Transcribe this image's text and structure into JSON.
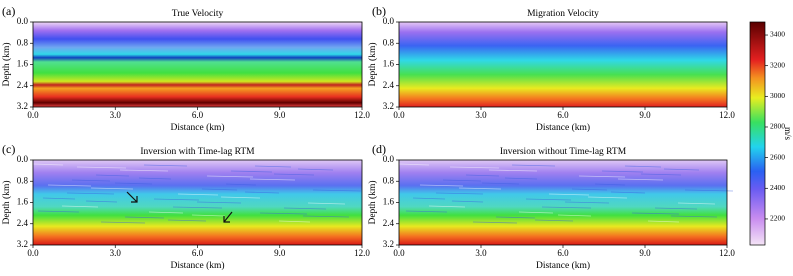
{
  "chart_data": [
    {
      "type": "heatmap",
      "panel": "(a)",
      "title": "True Velocity",
      "xlabel": "Distance (km)",
      "ylabel": "Depth (km)",
      "fill": "true",
      "xlim": [
        0,
        12
      ],
      "ylim": [
        3.2,
        0
      ],
      "xticks": [
        {
          "value": 0,
          "label": "0.0"
        },
        {
          "value": 3,
          "label": "3.0"
        },
        {
          "value": 6,
          "label": "6.0"
        },
        {
          "value": 9,
          "label": "9.0"
        },
        {
          "value": 12,
          "label": "12.0"
        }
      ],
      "yticks": [
        {
          "value": 0,
          "label": "0.0"
        },
        {
          "value": 0.8,
          "label": "0.8"
        },
        {
          "value": 1.6,
          "label": "1.6"
        },
        {
          "value": 2.4,
          "label": "2.4"
        },
        {
          "value": 3.2,
          "label": "3.2"
        }
      ]
    },
    {
      "type": "heatmap",
      "panel": "(b)",
      "title": "Migration Velocity",
      "xlabel": "Distance (km)",
      "ylabel": "Depth (km)",
      "fill": "smooth",
      "xlim": [
        0,
        12
      ],
      "ylim": [
        3.2,
        0
      ],
      "xticks": [
        {
          "value": 0,
          "label": "0.0"
        },
        {
          "value": 3,
          "label": "3.0"
        },
        {
          "value": 6,
          "label": "6.0"
        },
        {
          "value": 9,
          "label": "9.0"
        },
        {
          "value": 12,
          "label": "12.0"
        }
      ],
      "yticks": [
        {
          "value": 0,
          "label": "0.0"
        },
        {
          "value": 0.8,
          "label": "0.8"
        },
        {
          "value": 1.6,
          "label": "1.6"
        },
        {
          "value": 2.4,
          "label": "2.4"
        },
        {
          "value": 3.2,
          "label": "3.2"
        }
      ]
    },
    {
      "type": "heatmap",
      "panel": "(c)",
      "title": "Inversion with Time-lag RTM",
      "xlabel": "Distance (km)",
      "ylabel": "Depth (km)",
      "fill": "inv",
      "xlim": [
        0,
        12
      ],
      "ylim": [
        3.2,
        0
      ],
      "xticks": [
        {
          "value": 0,
          "label": "0.0"
        },
        {
          "value": 3,
          "label": "3.0"
        },
        {
          "value": 6,
          "label": "6.0"
        },
        {
          "value": 9,
          "label": "9.0"
        },
        {
          "value": 12,
          "label": "12.0"
        }
      ],
      "yticks": [
        {
          "value": 0,
          "label": "0.0"
        },
        {
          "value": 0.8,
          "label": "0.8"
        },
        {
          "value": 1.6,
          "label": "1.6"
        },
        {
          "value": 2.4,
          "label": "2.4"
        },
        {
          "value": 3.2,
          "label": "3.2"
        }
      ]
    },
    {
      "type": "heatmap",
      "panel": "(d)",
      "title": "Inversion without Time-lag RTM",
      "xlabel": "Distance (km)",
      "ylabel": "Depth (km)",
      "fill": "inv",
      "xlim": [
        0,
        12
      ],
      "ylim": [
        3.2,
        0
      ],
      "xticks": [
        {
          "value": 0,
          "label": "0.0"
        },
        {
          "value": 3,
          "label": "3.0"
        },
        {
          "value": 6,
          "label": "6.0"
        },
        {
          "value": 9,
          "label": "9.0"
        },
        {
          "value": 12,
          "label": "12.0"
        }
      ],
      "yticks": [
        {
          "value": 0,
          "label": "0.0"
        },
        {
          "value": 0.8,
          "label": "0.8"
        },
        {
          "value": 1.6,
          "label": "1.6"
        },
        {
          "value": 2.4,
          "label": "2.4"
        },
        {
          "value": 3.2,
          "label": "3.2"
        }
      ]
    },
    {
      "type": "colorbar",
      "label": "m/s",
      "clim": [
        2030,
        3485
      ],
      "ticks": [
        2200,
        2400,
        2600,
        2800,
        3000,
        3200,
        3400
      ]
    }
  ]
}
